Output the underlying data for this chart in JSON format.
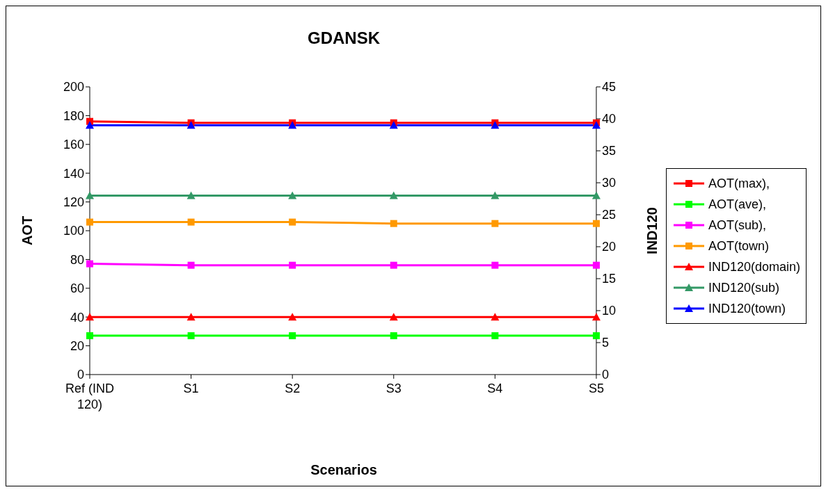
{
  "chart_data": {
    "type": "line",
    "title": "GDANSK",
    "xlabel": "Scenarios",
    "ylabel": "AOT",
    "y2label": "IND120",
    "categories": [
      "Ref (IND 120)",
      "S1",
      "S2",
      "S3",
      "S4",
      "S5"
    ],
    "series": [
      {
        "name": "AOT(max),",
        "color": "#ff0000",
        "marker": "square",
        "values": [
          176,
          175,
          175,
          175,
          175,
          175
        ]
      },
      {
        "name": "AOT(ave),",
        "color": "#00ff00",
        "marker": "square",
        "values": [
          27,
          27,
          27,
          27,
          27,
          27
        ]
      },
      {
        "name": "AOT(sub),",
        "color": "#ff00ff",
        "marker": "square",
        "values": [
          77,
          76,
          76,
          76,
          76,
          76
        ]
      },
      {
        "name": "AOT(town)",
        "color": "#ff9900",
        "marker": "square",
        "values": [
          106,
          106,
          106,
          105,
          105,
          105
        ]
      },
      {
        "name": "IND120(domain)",
        "color": "#ff0000",
        "marker": "triangle",
        "axis": "y2",
        "values": [
          9,
          9,
          9,
          9,
          9,
          9
        ]
      },
      {
        "name": "IND120(sub)",
        "color": "#339966",
        "marker": "triangle",
        "axis": "y2",
        "values": [
          28,
          28,
          28,
          28,
          28,
          28
        ]
      },
      {
        "name": "IND120(town)",
        "color": "#0000ff",
        "marker": "triangle",
        "axis": "y2",
        "values": [
          39,
          39,
          39,
          39,
          39,
          39
        ]
      }
    ],
    "ylim": [
      0,
      200
    ],
    "yticks": [
      0,
      20,
      40,
      60,
      80,
      100,
      120,
      140,
      160,
      180,
      200
    ],
    "y2lim": [
      0,
      45
    ],
    "y2ticks": [
      0,
      5,
      10,
      15,
      20,
      25,
      30,
      35,
      40,
      45
    ],
    "legend": "right",
    "grid": false
  }
}
